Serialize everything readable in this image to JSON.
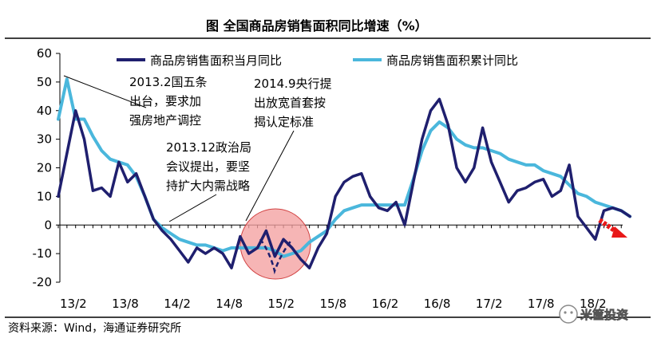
{
  "chart_data": {
    "type": "line",
    "title": "图    全国商品房销售面积同比增速（%）",
    "xlabel": "",
    "ylabel": "",
    "ylim": [
      -20,
      60
    ],
    "yticks": [
      60,
      50,
      40,
      30,
      20,
      10,
      0,
      -10,
      -20
    ],
    "xtick_labels": [
      "13/2",
      "13/8",
      "14/2",
      "14/8",
      "15/2",
      "15/8",
      "16/2",
      "16/8",
      "17/2",
      "17/8",
      "18/2"
    ],
    "x_start": "2013-01",
    "series": [
      {
        "name": "商品房销售面积当月同比",
        "color": "#1f1f6e",
        "values": [
          10,
          25,
          40,
          30,
          12,
          13,
          10,
          22,
          15,
          18,
          10,
          2,
          -2,
          -5,
          -9,
          -13,
          -8,
          -10,
          -8,
          -10,
          -15,
          -4,
          -10,
          -8,
          -2,
          -11,
          -5,
          -8,
          -12,
          -15,
          -8,
          -3,
          10,
          15,
          17,
          18,
          10,
          6,
          5,
          8,
          0,
          15,
          30,
          40,
          44,
          35,
          20,
          15,
          20,
          34,
          22,
          15,
          8,
          12,
          13,
          15,
          16,
          10,
          12,
          21,
          3,
          -1,
          -5,
          5,
          6,
          5,
          3
        ]
      },
      {
        "name": "商品房销售面积累计同比",
        "color": "#4ab7dc",
        "values": [
          37,
          51,
          37,
          37,
          31,
          26,
          23,
          22,
          21,
          17,
          10,
          2,
          -1,
          -3,
          -5,
          -6,
          -7,
          -7,
          -8,
          -9,
          -8,
          -8,
          -8,
          -8,
          -8,
          -9,
          -11,
          -10,
          -9,
          -6,
          -4,
          -2,
          2,
          5,
          6,
          7,
          7,
          7,
          7,
          7,
          7,
          16,
          26,
          33,
          36,
          34,
          30,
          28,
          27,
          27,
          26,
          25,
          23,
          22,
          21,
          21,
          19,
          18,
          17,
          14,
          11,
          10,
          8,
          7,
          6,
          5,
          3
        ]
      }
    ],
    "annotations": [
      {
        "lines": [
          "2013.2国五条",
          "出台，要求加",
          "强房地产调控"
        ]
      },
      {
        "lines": [
          "2014.9央行提",
          "出放宽首套按",
          "揭认定标准"
        ]
      },
      {
        "lines": [
          "2013.12政治局",
          "会议提出，要坚",
          "持扩大内需战略"
        ]
      }
    ]
  },
  "source_note": "资料来源：Wind，海通证券研究所",
  "watermark": "米筐投资"
}
